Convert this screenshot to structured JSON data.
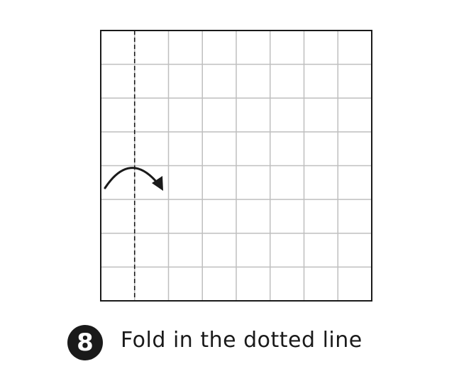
{
  "step": {
    "number": "8",
    "instruction": "Fold in the dotted line"
  },
  "diagram": {
    "paper": {
      "grid_divisions": 8,
      "grid_color": "#bfbfbf",
      "border_color": "#1a1a1a"
    },
    "fold_line": {
      "style": "dashed",
      "position_in_cells": 1,
      "color": "#1a1a1a"
    },
    "fold_arrow": {
      "direction": "left-to-right",
      "color": "#1a1a1a"
    }
  }
}
